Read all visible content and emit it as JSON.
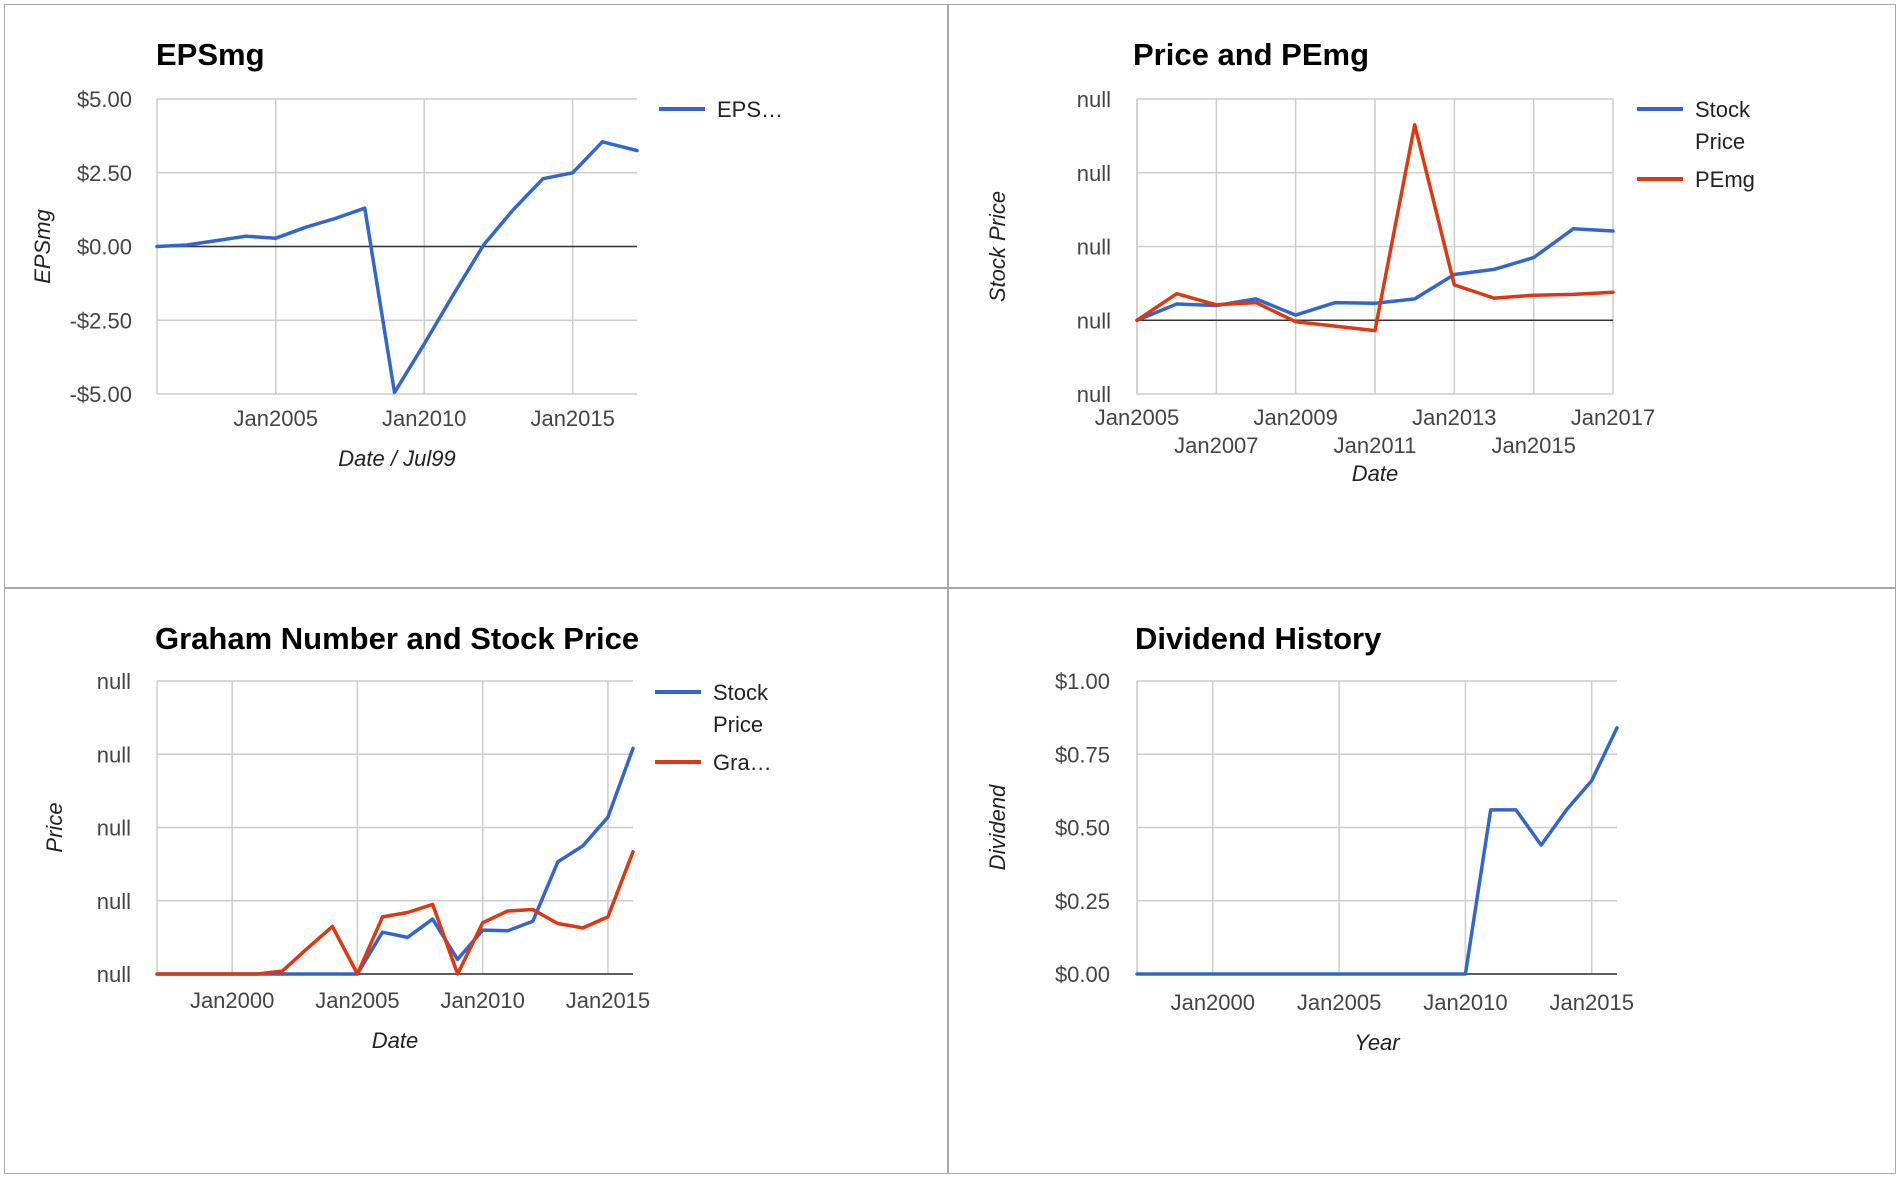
{
  "colors": {
    "blue": "#3366cc",
    "red": "#dc3912",
    "grid": "#cccccc",
    "baseline": "#333333"
  },
  "chart_data": [
    {
      "type": "line",
      "title": "EPSmg",
      "xlabel": "Date / Jul99",
      "ylabel": "EPSmg",
      "x_ticks": [
        "Jan2005",
        "Jan2010",
        "Jan2015"
      ],
      "y_ticks": [
        "$5.00",
        "$2.50",
        "$0.00",
        "-$2.50",
        "-$5.00"
      ],
      "xlim": [
        "2001-01",
        "2017-03"
      ],
      "ylim": [
        -5,
        5
      ],
      "x": [
        "2001-01",
        "2002-01",
        "2003-01",
        "2004-01",
        "2005-01",
        "2006-01",
        "2007-01",
        "2008-01",
        "2009-01",
        "2010-01",
        "2011-01",
        "2012-01",
        "2013-01",
        "2014-01",
        "2015-01",
        "2016-01",
        "2017-03"
      ],
      "series": [
        {
          "name": "EPS…",
          "color": "#3366cc",
          "values": [
            0.0,
            0.05,
            0.2,
            0.35,
            0.28,
            0.65,
            0.95,
            1.3,
            -4.95,
            -3.3,
            -1.6,
            0.05,
            1.25,
            2.3,
            2.5,
            3.55,
            3.25
          ]
        }
      ],
      "legend": "right"
    },
    {
      "type": "line",
      "title": "Price and PEmg",
      "xlabel": "Date",
      "ylabel": "Stock Price",
      "x_ticks": [
        "Jan2005",
        "Jan2007",
        "Jan2009",
        "Jan2011",
        "Jan2013",
        "Jan2015",
        "Jan2017"
      ],
      "y_ticks": [
        "null",
        "null",
        "null",
        "null",
        "null"
      ],
      "xlim": [
        "2005-01",
        "2017-01"
      ],
      "ylim": [
        -1,
        3
      ],
      "x": [
        "2005-01",
        "2006-01",
        "2007-01",
        "2008-01",
        "2009-01",
        "2010-01",
        "2011-01",
        "2012-01",
        "2013-01",
        "2014-01",
        "2015-01",
        "2016-01",
        "2017-01"
      ],
      "series": [
        {
          "name": "Stock Price",
          "color": "#3366cc",
          "values": [
            0.0,
            0.22,
            0.2,
            0.29,
            0.07,
            0.24,
            0.23,
            0.29,
            0.62,
            0.69,
            0.85,
            1.24,
            1.21
          ]
        },
        {
          "name": "PEmg",
          "color": "#dc3912",
          "values": [
            0.0,
            0.36,
            0.21,
            0.24,
            -0.02,
            -0.08,
            -0.14,
            2.65,
            0.48,
            0.3,
            0.34,
            0.35,
            0.38
          ]
        }
      ],
      "legend": "right"
    },
    {
      "type": "line",
      "title": "Graham Number and Stock Price",
      "xlabel": "Date",
      "ylabel": "Price",
      "x_ticks": [
        "Jan2000",
        "Jan2005",
        "Jan2010",
        "Jan2015"
      ],
      "y_ticks": [
        "null",
        "null",
        "null",
        "null",
        "null"
      ],
      "xlim": [
        "1997-01",
        "2016-01"
      ],
      "ylim": [
        0,
        4
      ],
      "x": [
        "1997-01",
        "1998-01",
        "1999-01",
        "2000-01",
        "2001-01",
        "2002-01",
        "2003-01",
        "2004-01",
        "2005-01",
        "2006-01",
        "2007-01",
        "2008-01",
        "2009-01",
        "2010-01",
        "2011-01",
        "2012-01",
        "2013-01",
        "2014-01",
        "2015-01",
        "2016-01"
      ],
      "series": [
        {
          "name": "Stock Price",
          "color": "#3366cc",
          "values": [
            0,
            0,
            0,
            0,
            0,
            0,
            0,
            0,
            0,
            0.57,
            0.5,
            0.75,
            0.2,
            0.6,
            0.59,
            0.72,
            1.53,
            1.75,
            2.14,
            3.08
          ]
        },
        {
          "name": "Gra…",
          "color": "#dc3912",
          "values": [
            0,
            0,
            0,
            0,
            0,
            0.04,
            0.35,
            0.65,
            0,
            0.78,
            0.84,
            0.95,
            0,
            0.7,
            0.86,
            0.88,
            0.69,
            0.63,
            0.78,
            1.67
          ]
        }
      ],
      "legend": "right"
    },
    {
      "type": "line",
      "title": "Dividend History",
      "xlabel": "Year",
      "ylabel": "Dividend",
      "x_ticks": [
        "Jan2000",
        "Jan2005",
        "Jan2010",
        "Jan2015"
      ],
      "y_ticks": [
        "$1.00",
        "$0.75",
        "$0.50",
        "$0.25",
        "$0.00"
      ],
      "xlim": [
        "1997-01",
        "2016-01"
      ],
      "ylim": [
        0,
        1
      ],
      "x": [
        "1997-01",
        "1998-01",
        "1999-01",
        "2000-01",
        "2001-01",
        "2002-01",
        "2003-01",
        "2004-01",
        "2005-01",
        "2006-01",
        "2007-01",
        "2008-01",
        "2009-01",
        "2010-01",
        "2011-01",
        "2012-01",
        "2013-01",
        "2014-01",
        "2015-01",
        "2016-01"
      ],
      "series": [
        {
          "name": "",
          "color": "#3366cc",
          "values": [
            0,
            0,
            0,
            0,
            0,
            0,
            0,
            0,
            0,
            0,
            0,
            0,
            0,
            0,
            0.56,
            0.56,
            0.44,
            0.56,
            0.66,
            0.84
          ]
        }
      ],
      "legend": "none"
    }
  ]
}
